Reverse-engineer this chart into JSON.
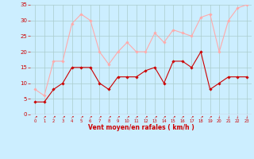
{
  "x": [
    0,
    1,
    2,
    3,
    4,
    5,
    6,
    7,
    8,
    9,
    10,
    11,
    12,
    13,
    14,
    15,
    16,
    17,
    18,
    19,
    20,
    21,
    22,
    23
  ],
  "wind_avg": [
    4,
    4,
    8,
    10,
    15,
    15,
    15,
    10,
    8,
    12,
    12,
    12,
    14,
    15,
    10,
    17,
    17,
    15,
    20,
    8,
    10,
    12,
    12,
    12
  ],
  "wind_gust": [
    8,
    6,
    17,
    17,
    29,
    32,
    30,
    20,
    16,
    20,
    23,
    20,
    20,
    26,
    23,
    27,
    26,
    25,
    31,
    32,
    20,
    30,
    34,
    35
  ],
  "line_avg_color": "#cc0000",
  "line_gust_color": "#ffaaaa",
  "bg_color": "#cceeff",
  "grid_color": "#aacccc",
  "xlabel": "Vent moyen/en rafales ( km/h )",
  "ylim": [
    0,
    35
  ],
  "yticks": [
    0,
    5,
    10,
    15,
    20,
    25,
    30,
    35
  ],
  "xlabel_color": "#cc0000",
  "tick_color": "#cc0000",
  "arrow_labels": [
    "↗",
    "↗",
    "↗",
    "↗",
    "↗",
    "↗",
    "↗",
    "↗",
    "↗",
    "↗",
    "↗",
    "↗",
    "↗",
    "↗",
    "↗",
    "↗",
    "↗",
    "↗",
    "↗",
    "↗",
    "↓",
    "↓",
    "↓",
    "↓"
  ]
}
